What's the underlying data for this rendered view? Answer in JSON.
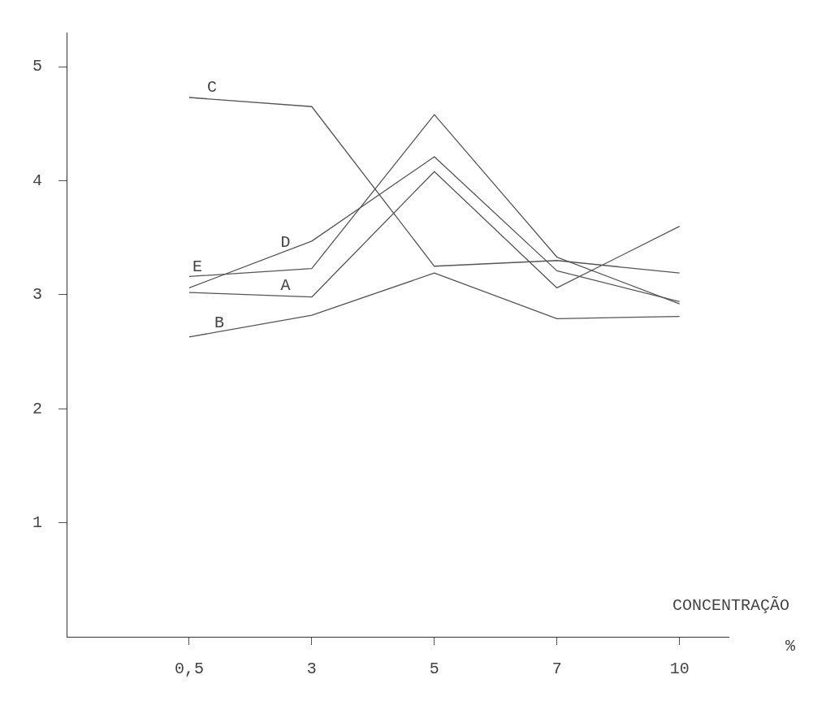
{
  "chart_data": {
    "type": "line",
    "xlabel": "CONCENTRAÇÃO",
    "annotations": [
      "%"
    ],
    "categories": [
      "0,5",
      "3",
      "5",
      "7",
      "10"
    ],
    "ylim": [
      0,
      5.3
    ],
    "yticks": [
      1,
      2,
      3,
      4,
      5
    ],
    "grid": false,
    "legend": false,
    "marker": "none",
    "line_style": "solid",
    "series": [
      {
        "name": "C",
        "color": "#555555",
        "values": [
          4.73,
          4.65,
          3.25,
          3.3,
          3.19
        ]
      },
      {
        "name": "D",
        "color": "#555555",
        "values": [
          3.06,
          3.47,
          4.21,
          3.21,
          2.94
        ]
      },
      {
        "name": "E",
        "color": "#555555",
        "values": [
          3.16,
          3.23,
          4.58,
          3.33,
          2.92
        ]
      },
      {
        "name": "A",
        "color": "#555555",
        "values": [
          3.02,
          2.98,
          4.08,
          3.06,
          3.6
        ]
      },
      {
        "name": "B",
        "color": "#555555",
        "values": [
          2.63,
          2.82,
          3.19,
          2.79,
          2.81
        ]
      }
    ]
  }
}
